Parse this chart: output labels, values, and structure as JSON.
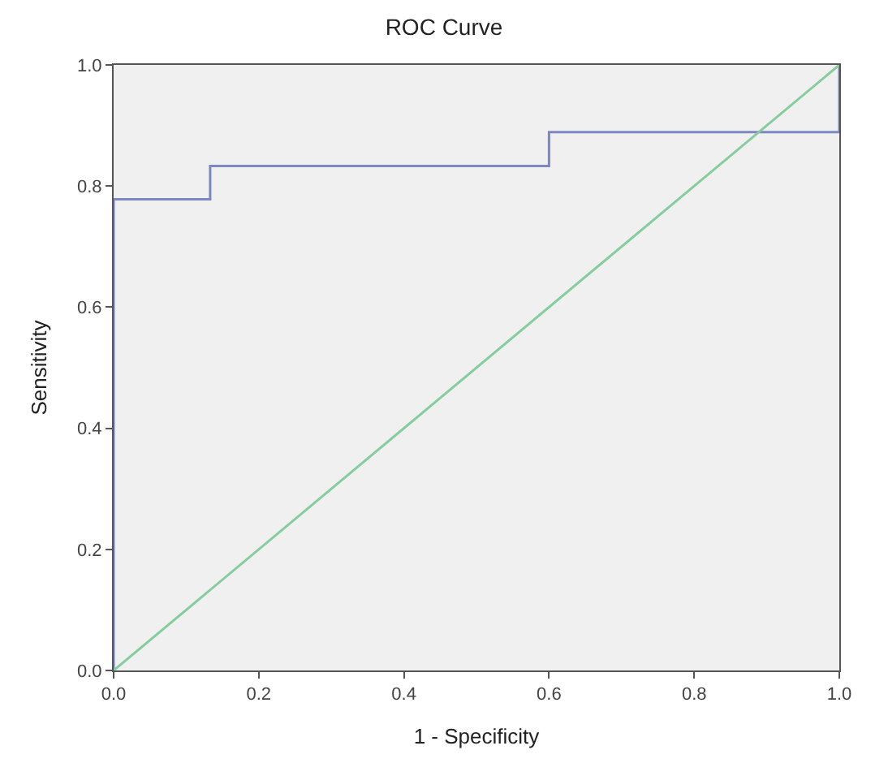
{
  "chart_data": {
    "type": "line",
    "title": "ROC Curve",
    "xlabel": "1 - Specificity",
    "ylabel": "Sensitivity",
    "xlim": [
      0,
      1
    ],
    "ylim": [
      0,
      1
    ],
    "xticks": [
      {
        "value": 0,
        "label": "0.0"
      },
      {
        "value": 0.2,
        "label": "0.2"
      },
      {
        "value": 0.4,
        "label": "0.4"
      },
      {
        "value": 0.6,
        "label": "0.6"
      },
      {
        "value": 0.8,
        "label": "0.8"
      },
      {
        "value": 1,
        "label": "1.0"
      }
    ],
    "yticks": [
      {
        "value": 0,
        "label": "0.0"
      },
      {
        "value": 0.2,
        "label": "0.2"
      },
      {
        "value": 0.4,
        "label": "0.4"
      },
      {
        "value": 0.6,
        "label": "0.6"
      },
      {
        "value": 0.8,
        "label": "0.8"
      },
      {
        "value": 1,
        "label": "1.0"
      }
    ],
    "grid": false,
    "series": [
      {
        "type": "step",
        "color": "#7b88c4",
        "x": [
          0,
          0,
          0.133,
          0.6,
          1
        ],
        "values": [
          0,
          0.778,
          0.833,
          0.889,
          1
        ]
      },
      {
        "color": "#86cc9c",
        "x": [
          0,
          1
        ],
        "values": [
          0,
          1
        ]
      }
    ]
  }
}
